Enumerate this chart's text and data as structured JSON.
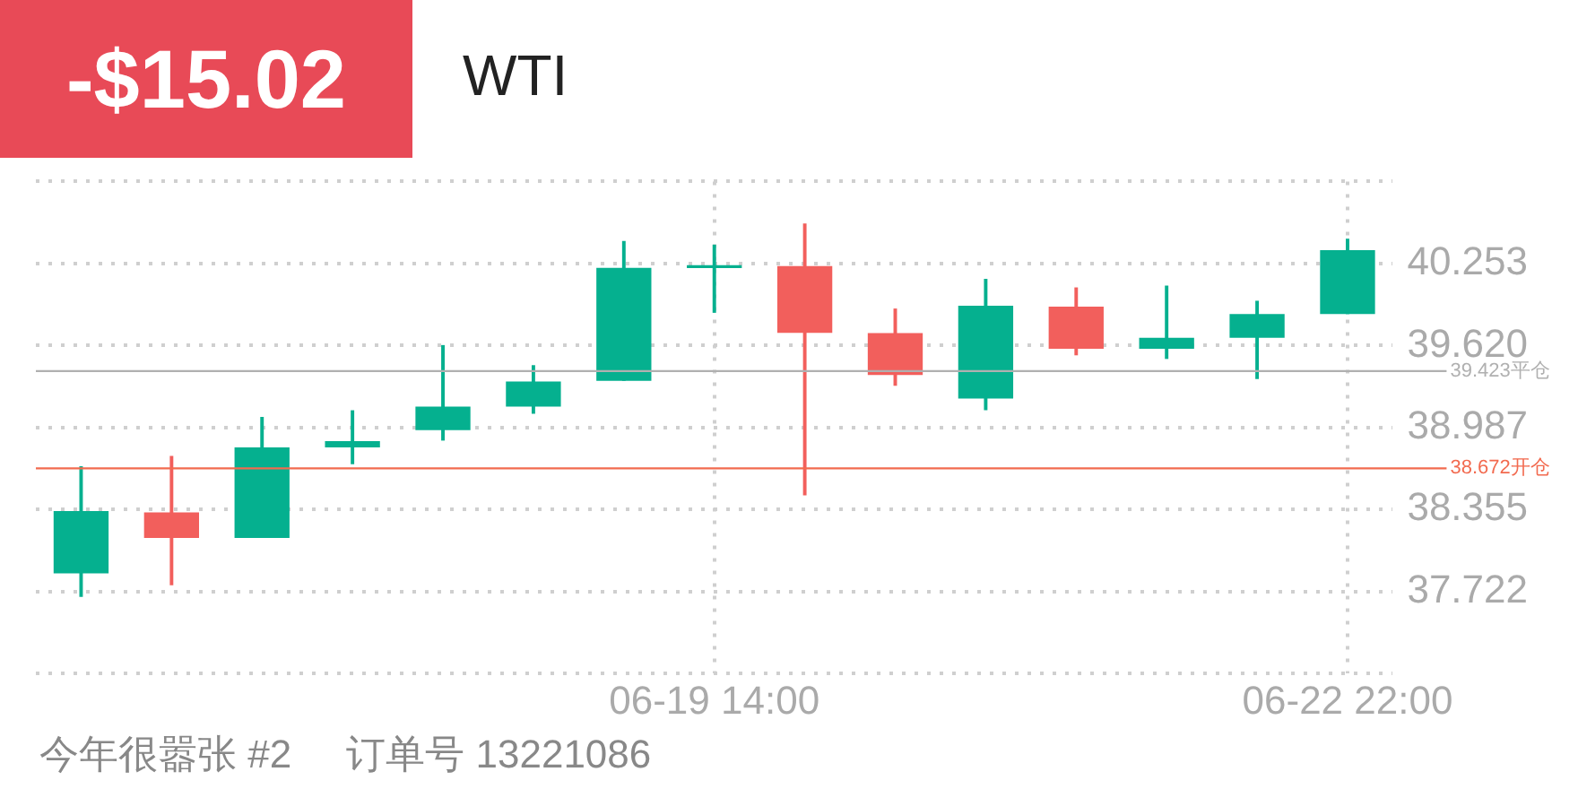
{
  "chart_data": {
    "type": "candlestick",
    "title": "WTI",
    "annotations": [
      "-$15.02",
      "今年很嚣张 #2",
      "订单号 13221086"
    ],
    "categories": [
      null,
      null,
      null,
      null,
      null,
      null,
      null,
      "06-19 14:00",
      null,
      null,
      null,
      null,
      null,
      null,
      "06-22 22:00"
    ],
    "ohlc": [
      [
        37.867,
        38.684,
        37.684,
        38.338
      ],
      [
        38.328,
        38.764,
        37.774,
        38.14
      ],
      [
        38.14,
        39.064,
        38.14,
        38.83
      ],
      [
        38.839,
        39.116,
        38.708,
        38.877
      ],
      [
        38.971,
        39.619,
        38.891,
        39.145
      ],
      [
        39.154,
        39.464,
        39.098,
        39.338
      ],
      [
        39.352,
        40.422,
        39.352,
        40.215
      ],
      [
        40.222,
        40.394,
        39.877,
        40.236
      ],
      [
        40.229,
        40.557,
        38.468,
        39.722
      ],
      [
        39.712,
        39.901,
        39.314,
        39.398
      ],
      [
        39.215,
        40.13,
        39.126,
        39.923
      ],
      [
        39.915,
        40.064,
        39.549,
        39.599
      ],
      [
        39.599,
        40.078,
        39.521,
        39.676
      ],
      [
        39.684,
        39.961,
        39.366,
        39.859
      ],
      [
        39.867,
        40.44,
        39.867,
        40.352
      ]
    ],
    "colors": [
      "#05b08f",
      "#f25f5c",
      "#05b08f",
      "#05b08f",
      "#05b08f",
      "#05b08f",
      "#05b08f",
      "#05b08f",
      "#f25f5c",
      "#f25f5c",
      "#05b08f",
      "#f25f5c",
      "#05b08f",
      "#05b08f",
      "#05b08f"
    ],
    "ylim": [
      37.089,
      40.886
    ],
    "yticks": [
      {
        "value": 37.089,
        "label": null
      },
      37.722,
      38.355,
      38.987,
      {
        "value": 39.62,
        "label": "39.620"
      },
      40.253,
      {
        "value": 40.886,
        "label": null
      }
    ],
    "grid": true,
    "ref_lines": [
      {
        "axis": "y",
        "value": 39.423,
        "label": "39.423平仓",
        "color": "#b0b0b0"
      },
      {
        "axis": "y",
        "value": 38.672,
        "label": "38.672开仓",
        "color": "#f26a4f"
      }
    ]
  }
}
